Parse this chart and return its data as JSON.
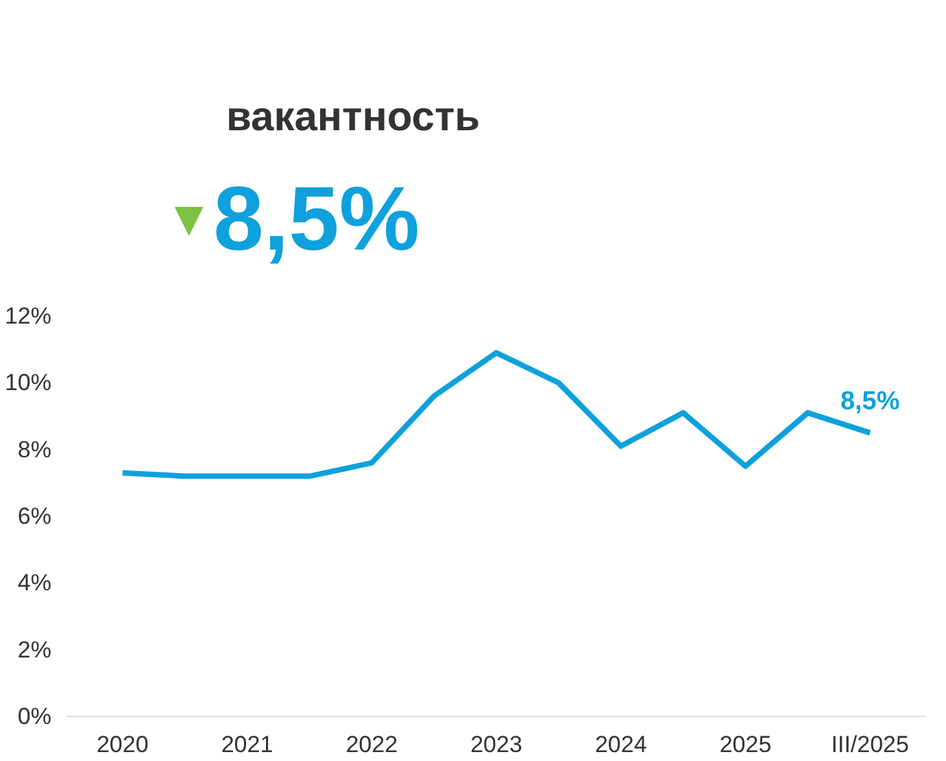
{
  "chart_data": {
    "type": "line",
    "title": "вакантность",
    "annotations": [
      "▼",
      "8,5%"
    ],
    "categories": [
      "2020",
      null,
      "2021",
      null,
      "2022",
      null,
      "2023",
      null,
      "2024",
      null,
      "2025",
      null,
      "III/2025"
    ],
    "series": [
      {
        "color": "#0ea1dc",
        "values": [
          7.3,
          7.2,
          7.2,
          7.2,
          7.6,
          9.6,
          10.9,
          10.0,
          8.1,
          9.1,
          7.5,
          9.1,
          8.5
        ],
        "value_labels": [
          null,
          null,
          null,
          null,
          null,
          null,
          null,
          null,
          null,
          null,
          null,
          null,
          "8,5%"
        ]
      }
    ],
    "ylim": [
      0,
      12
    ],
    "yticks": [
      {
        "value": 0,
        "label": "0%"
      },
      {
        "value": 2,
        "label": "2%"
      },
      {
        "value": 4,
        "label": "4%"
      },
      {
        "value": 6,
        "label": "6%"
      },
      {
        "value": 8,
        "label": "8%"
      },
      {
        "value": 10,
        "label": "10%"
      },
      {
        "value": 12,
        "label": "12%"
      }
    ],
    "grid": false,
    "marker": "none",
    "line_style": "solid"
  }
}
